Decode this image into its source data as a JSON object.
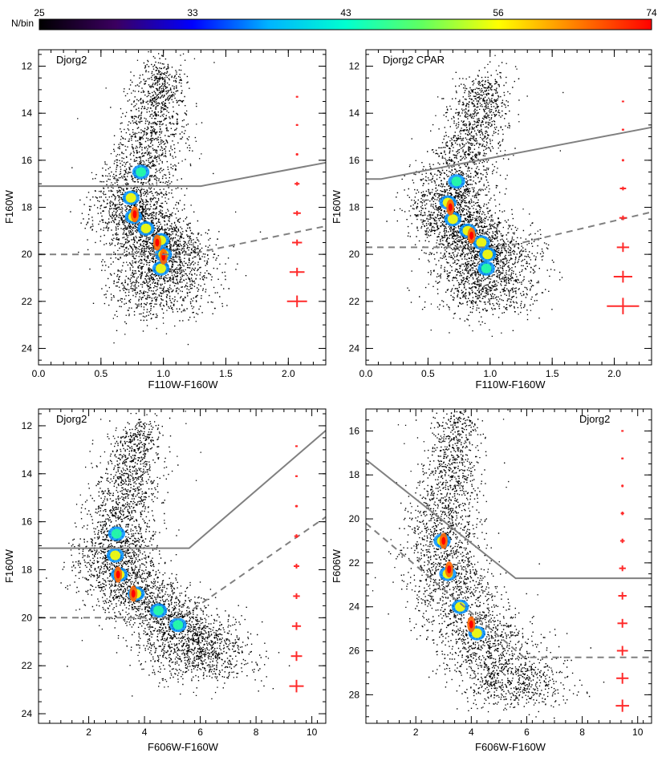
{
  "colorbar": {
    "label": "N/bin",
    "ticks": [
      "25",
      "33",
      "43",
      "56",
      "74"
    ],
    "colors": [
      "#000000",
      "#3b0060",
      "#0000ff",
      "#00b4ff",
      "#00ffd0",
      "#60ff60",
      "#ffff00",
      "#ff8000",
      "#ff0000"
    ]
  },
  "chart_data": [
    {
      "type": "scatter",
      "title": "Djorg2",
      "xlabel": "F110W-F160W",
      "ylabel": "F160W",
      "xlim": [
        0.0,
        2.3
      ],
      "ylim": [
        24.7,
        11.3
      ],
      "xticks": [
        0.0,
        0.5,
        1.0,
        1.5,
        2.0
      ],
      "xtick_labels": [
        "0.0",
        "0.5",
        "1.0",
        "1.5",
        "2.0"
      ],
      "yticks": [
        12,
        14,
        16,
        18,
        20,
        22,
        24
      ],
      "ytick_labels": [
        "12",
        "14",
        "16",
        "18",
        "20",
        "22",
        "24"
      ],
      "solid_line": [
        [
          0.0,
          17.1
        ],
        [
          1.3,
          17.1
        ],
        [
          2.3,
          16.1
        ]
      ],
      "dashed_line": [
        [
          0.0,
          20.0
        ],
        [
          1.2,
          20.0
        ],
        [
          2.3,
          18.8
        ]
      ],
      "error_bars": {
        "x": 2.07,
        "mags": [
          13.3,
          14.5,
          15.75,
          17.0,
          18.25,
          19.5,
          20.75,
          22.0
        ],
        "xerr": [
          0.003,
          0.006,
          0.01,
          0.02,
          0.03,
          0.04,
          0.06,
          0.08
        ],
        "yerr": [
          0.03,
          0.04,
          0.05,
          0.08,
          0.1,
          0.13,
          0.18,
          0.25
        ]
      },
      "sequence": [
        [
          1.0,
          12.1
        ],
        [
          0.95,
          13.5
        ],
        [
          0.9,
          15.0
        ],
        [
          0.82,
          16.5
        ],
        [
          0.74,
          17.6
        ],
        [
          0.76,
          18.4
        ],
        [
          0.86,
          18.9
        ],
        [
          0.98,
          19.4
        ],
        [
          1.0,
          20.0
        ],
        [
          0.98,
          20.6
        ],
        [
          0.96,
          21.3
        ],
        [
          0.96,
          22.4
        ]
      ],
      "peaks": [
        [
          0.77,
          18.3
        ],
        [
          0.95,
          19.5
        ],
        [
          1.0,
          20.1
        ]
      ]
    },
    {
      "type": "scatter",
      "title": "Djorg2 CPAR",
      "xlabel": "F110W-F160W",
      "ylabel": "F160W",
      "xlim": [
        0.0,
        2.3
      ],
      "ylim": [
        24.7,
        11.3
      ],
      "xticks": [
        0.0,
        0.5,
        1.0,
        1.5,
        2.0
      ],
      "xtick_labels": [
        "0.0",
        "0.5",
        "1.0",
        "1.5",
        "2.0"
      ],
      "yticks": [
        12,
        14,
        16,
        18,
        20,
        22,
        24
      ],
      "ytick_labels": [
        "12",
        "14",
        "16",
        "18",
        "20",
        "22",
        "24"
      ],
      "solid_line": [
        [
          0.0,
          16.8
        ],
        [
          0.12,
          16.8
        ],
        [
          2.3,
          14.6
        ]
      ],
      "dashed_line": [
        [
          0.0,
          19.7
        ],
        [
          1.1,
          19.7
        ],
        [
          2.3,
          18.2
        ]
      ],
      "error_bars": {
        "x": 2.07,
        "mags": [
          13.5,
          14.7,
          16.0,
          17.2,
          18.45,
          19.7,
          20.95,
          22.2
        ],
        "xerr": [
          0.003,
          0.006,
          0.01,
          0.025,
          0.03,
          0.05,
          0.075,
          0.13
        ],
        "yerr": [
          0.03,
          0.04,
          0.05,
          0.08,
          0.1,
          0.2,
          0.25,
          0.35
        ]
      },
      "sequence": [
        [
          0.95,
          12.6
        ],
        [
          0.9,
          14.0
        ],
        [
          0.82,
          15.5
        ],
        [
          0.73,
          16.9
        ],
        [
          0.66,
          17.8
        ],
        [
          0.7,
          18.5
        ],
        [
          0.82,
          19.0
        ],
        [
          0.93,
          19.5
        ],
        [
          0.98,
          20.0
        ],
        [
          0.97,
          20.6
        ],
        [
          0.95,
          21.3
        ],
        [
          0.95,
          22.2
        ]
      ],
      "peaks": [
        [
          0.68,
          18.0
        ],
        [
          0.85,
          19.2
        ]
      ]
    },
    {
      "type": "scatter",
      "title": "Djorg2",
      "xlabel": "F606W-F160W",
      "ylabel": "F160W",
      "xlim": [
        0.2,
        10.5
      ],
      "ylim": [
        24.4,
        11.3
      ],
      "xticks": [
        2,
        4,
        6,
        8,
        10
      ],
      "xtick_labels": [
        "2",
        "4",
        "6",
        "8",
        "10"
      ],
      "yticks": [
        12,
        14,
        16,
        18,
        20,
        22,
        24
      ],
      "ytick_labels": [
        "12",
        "14",
        "16",
        "18",
        "20",
        "22",
        "24"
      ],
      "solid_line": [
        [
          0.2,
          17.1
        ],
        [
          5.6,
          17.1
        ],
        [
          10.5,
          12.2
        ]
      ],
      "dashed_line": [
        [
          0.2,
          20.0
        ],
        [
          5.3,
          20.0
        ],
        [
          10.5,
          15.8
        ]
      ],
      "error_bars": {
        "x": 9.45,
        "mags": [
          12.85,
          14.1,
          15.35,
          16.6,
          17.85,
          19.1,
          20.35,
          21.6,
          22.85
        ],
        "xerr": [
          0.02,
          0.03,
          0.05,
          0.08,
          0.1,
          0.12,
          0.16,
          0.2,
          0.26
        ],
        "yerr": [
          0.02,
          0.03,
          0.05,
          0.08,
          0.1,
          0.12,
          0.16,
          0.2,
          0.26
        ]
      },
      "sequence": [
        [
          3.8,
          12.0
        ],
        [
          3.6,
          13.5
        ],
        [
          3.3,
          15.0
        ],
        [
          3.0,
          16.5
        ],
        [
          2.95,
          17.4
        ],
        [
          3.1,
          18.2
        ],
        [
          3.7,
          19.0
        ],
        [
          4.5,
          19.7
        ],
        [
          5.2,
          20.3
        ],
        [
          5.7,
          20.9
        ],
        [
          6.0,
          21.5
        ],
        [
          6.0,
          22.3
        ]
      ],
      "peaks": [
        [
          3.05,
          18.2
        ],
        [
          3.6,
          19.0
        ]
      ]
    },
    {
      "type": "scatter",
      "title": "Djorg2",
      "xlabel": "F606W-F160W",
      "ylabel": "F606W",
      "xlim": [
        0.2,
        10.5
      ],
      "ylim": [
        29.3,
        15.0
      ],
      "xticks": [
        2,
        4,
        6,
        8,
        10
      ],
      "xtick_labels": [
        "2",
        "4",
        "6",
        "8",
        "10"
      ],
      "yticks": [
        16,
        18,
        20,
        22,
        24,
        26,
        28
      ],
      "ytick_labels": [
        "16",
        "18",
        "20",
        "22",
        "24",
        "26",
        "28"
      ],
      "solid_line": [
        [
          0.2,
          17.3
        ],
        [
          5.6,
          22.7
        ],
        [
          10.5,
          22.7
        ]
      ],
      "dashed_line": [
        [
          0.2,
          20.2
        ],
        [
          5.9,
          26.3
        ],
        [
          10.5,
          26.3
        ]
      ],
      "error_bars": {
        "x": 9.45,
        "mags": [
          16.0,
          17.25,
          18.5,
          19.75,
          21.0,
          22.25,
          23.5,
          24.75,
          26.0,
          27.25,
          28.5
        ],
        "xerr": [
          0.02,
          0.03,
          0.04,
          0.06,
          0.08,
          0.12,
          0.15,
          0.18,
          0.2,
          0.22,
          0.24
        ],
        "yerr": [
          0.03,
          0.04,
          0.06,
          0.08,
          0.1,
          0.13,
          0.17,
          0.2,
          0.22,
          0.25,
          0.28
        ]
      },
      "sequence": [
        [
          3.5,
          15.3
        ],
        [
          3.3,
          17.5
        ],
        [
          3.0,
          19.5
        ],
        [
          2.95,
          21.0
        ],
        [
          3.15,
          22.5
        ],
        [
          3.6,
          24.0
        ],
        [
          4.2,
          25.2
        ],
        [
          4.9,
          26.3
        ],
        [
          5.4,
          27.3
        ],
        [
          5.8,
          28.2
        ]
      ],
      "peaks": [
        [
          3.0,
          21.0
        ],
        [
          3.2,
          22.3
        ],
        [
          4.0,
          24.8
        ]
      ]
    }
  ]
}
